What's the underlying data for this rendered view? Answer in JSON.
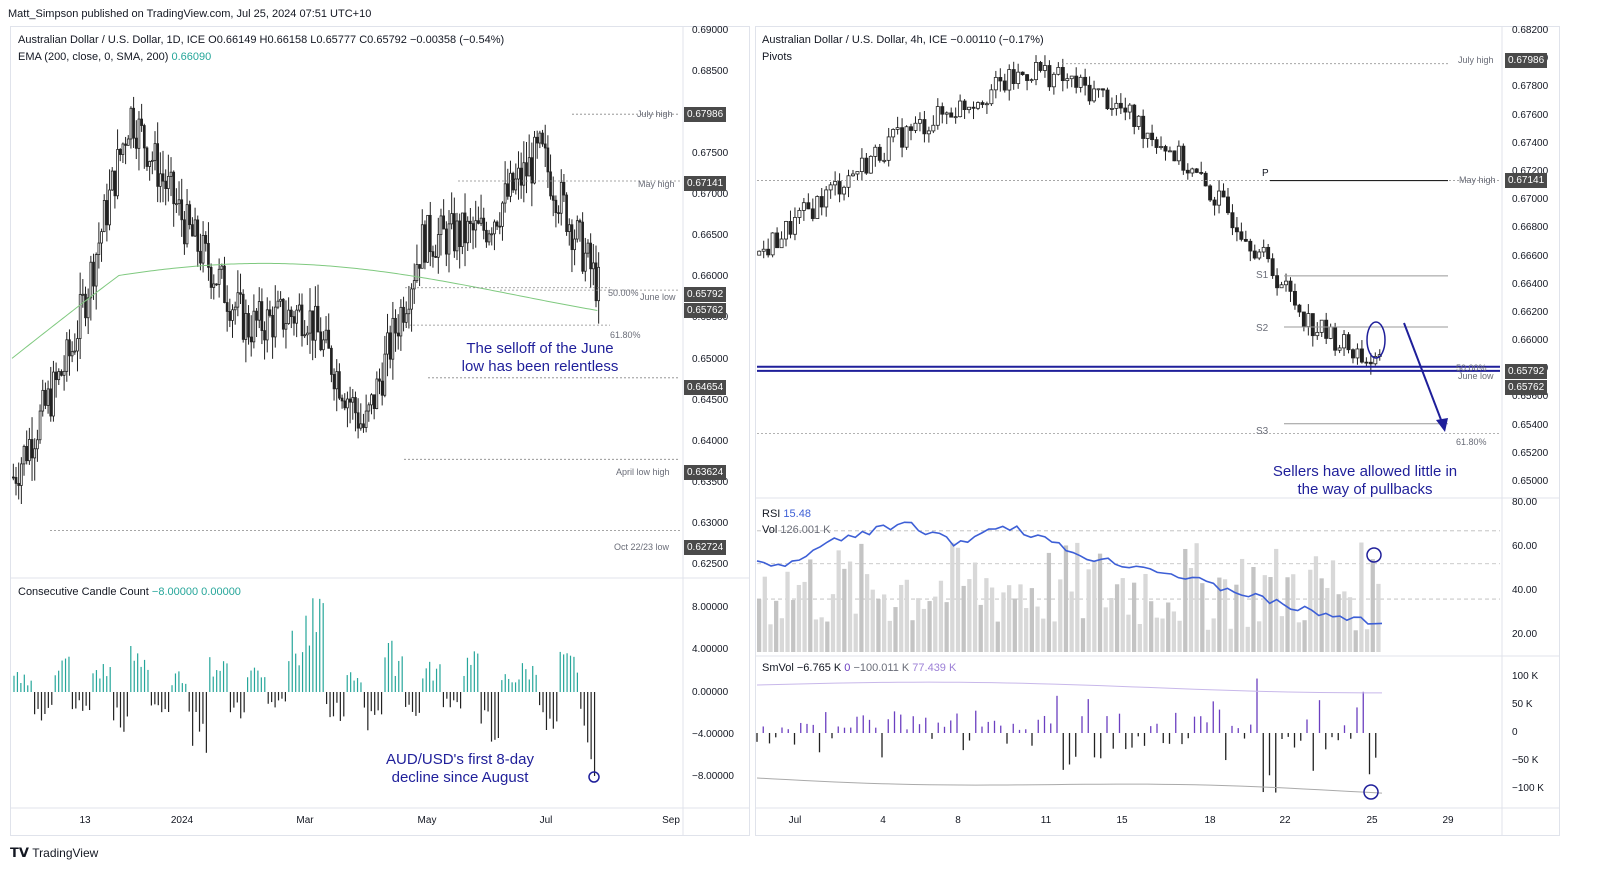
{
  "publisher": "Matt_Simpson published on TradingView.com, Jul 25, 2024 07:51 UTC+10",
  "footer_brand": "TradingView",
  "left": {
    "title": "Australian Dollar / U.S. Dollar, 1D, ICE",
    "ohlc": "O0.66149  H0.66158  L0.65777  C0.65792  −0.00358 (−0.54%)",
    "ema_label": "EMA (200, close, 0, SMA, 200)",
    "ema_value": "0.66090",
    "indicator_title": "Consecutive Candle Count",
    "indicator_values": "−8.00000  0.00000",
    "annotation_main": [
      "The selloff of the June",
      "low has been relentless"
    ],
    "annotation_ind": [
      "AUD/USD's first 8-day",
      "decline since August"
    ],
    "level_labels": {
      "july_high": "July high",
      "may_high": "May high",
      "fib50": "50.00%",
      "june_low": "June low",
      "fib618": "61.80%",
      "april_low_high": "April low high",
      "oct_low": "Oct 22/23 low"
    },
    "tags": [
      "0.67986",
      "0.67141",
      "0.65792",
      "0.65762",
      "0.64654",
      "0.63624",
      "0.62724"
    ],
    "price_ticks": [
      "0.69000",
      "0.68500",
      "0.67500",
      "0.67000",
      "0.66500",
      "0.66000",
      "0.65500",
      "0.65000",
      "0.64500",
      "0.64000",
      "0.63500",
      "0.63000",
      "0.62500"
    ],
    "ind_ticks": [
      "8.00000",
      "4.00000",
      "0.00000",
      "−4.00000",
      "−8.00000"
    ],
    "time_ticks": [
      "13",
      "2024",
      "Mar",
      "May",
      "Jul",
      "Sep"
    ]
  },
  "right": {
    "title": "Australian Dollar / U.S. Dollar, 4h, ICE",
    "change": "−0.00110 (−0.17%)",
    "pivots_label": "Pivots",
    "annotation_main": [
      "Sellers have allowed little in",
      "the way of pullbacks"
    ],
    "level_labels": {
      "july_high": "July high",
      "may_high": "May high",
      "p": "P",
      "s1": "S1",
      "s2": "S2",
      "s3": "S3",
      "fib50": "50.00%",
      "june_low": "June low",
      "fib618": "61.80%"
    },
    "tags": [
      "0.67986",
      "0.67141",
      "0.65792",
      "0.65762"
    ],
    "price_ticks": [
      "0.68200",
      "0.68000",
      "0.67800",
      "0.67600",
      "0.67400",
      "0.67200",
      "0.67000",
      "0.66800",
      "0.66600",
      "0.66400",
      "0.66200",
      "0.66000",
      "0.65800",
      "0.65600",
      "0.65400",
      "0.65200",
      "0.65000"
    ],
    "rsi_label": "RSI",
    "rsi_value": "15.48",
    "vol_label": "Vol",
    "vol_value": "126.001 K",
    "rsi_ticks": [
      "80.00",
      "60.00",
      "40.00",
      "20.00"
    ],
    "smvol_label": "SmVol",
    "smvol_values": [
      "−6.765 K",
      "0",
      "−100.011 K",
      "77.439 K"
    ],
    "smvol_ticks": [
      "100 K",
      "50 K",
      "0",
      "−50 K",
      "−100 K"
    ],
    "time_ticks": [
      "Jul",
      "4",
      "8",
      "11",
      "15",
      "18",
      "22",
      "25",
      "29"
    ]
  },
  "colors": {
    "annotation": "#1f1f9a",
    "ema": "#7fc97f",
    "up_bar": "#26a69a",
    "rsi": "#3d5fd6",
    "smvol_pos": "#6b3fc0",
    "tag_bg": "#4a4a4a"
  },
  "chart_data": [
    {
      "type": "candlestick",
      "title": "Australian Dollar / U.S. Dollar, 1D, ICE",
      "ylim": [
        0.6225,
        0.6905
      ],
      "x_range": [
        "2023-10",
        "2024-09"
      ],
      "key_points": [
        {
          "x": "2023-10",
          "close": 0.634
        },
        {
          "x": "2023-11",
          "close": 0.65
        },
        {
          "x": "2023-12",
          "close": 0.68
        },
        {
          "x": "2024-01",
          "close": 0.665
        },
        {
          "x": "2024-02",
          "close": 0.653
        },
        {
          "x": "2024-03",
          "close": 0.655
        },
        {
          "x": "2024-04",
          "close": 0.64
        },
        {
          "x": "2024-05",
          "close": 0.664
        },
        {
          "x": "2024-06",
          "close": 0.665
        },
        {
          "x": "2024-07",
          "close": 0.675
        },
        {
          "x": "2024-07-24",
          "close": 0.65792
        }
      ]
    },
    {
      "type": "bar",
      "title": "Consecutive Candle Count",
      "ylim": [
        -10,
        10
      ],
      "values": [
        2,
        -3,
        4,
        -2,
        3,
        -4,
        5,
        -2,
        2,
        -6,
        4,
        -3,
        3,
        -2,
        6,
        9,
        -3,
        2,
        -4,
        5,
        -3,
        3,
        -2,
        4,
        -5,
        2,
        3,
        -4,
        4,
        -8
      ]
    },
    {
      "type": "candlestick",
      "title": "Australian Dollar / U.S. Dollar, 4h, ICE",
      "ylim": [
        0.649,
        0.6823
      ],
      "x_range": [
        "Jul",
        "29"
      ],
      "key_points": [
        {
          "x": "Jul 1",
          "close": 0.666
        },
        {
          "x": "Jul 4",
          "close": 0.6705
        },
        {
          "x": "Jul 8",
          "close": 0.6745
        },
        {
          "x": "Jul 11",
          "close": 0.677
        },
        {
          "x": "Jul 12",
          "close": 0.6795
        },
        {
          "x": "Jul 15",
          "close": 0.6775
        },
        {
          "x": "Jul 18",
          "close": 0.6735
        },
        {
          "x": "Jul 22",
          "close": 0.668
        },
        {
          "x": "Jul 24",
          "close": 0.661
        },
        {
          "x": "Jul 25",
          "close": 0.65792
        }
      ]
    },
    {
      "type": "line",
      "title": "RSI",
      "ylim": [
        0,
        85
      ],
      "values": [
        50,
        48,
        52,
        60,
        64,
        68,
        70,
        72,
        68,
        62,
        64,
        72,
        70,
        66,
        60,
        55,
        52,
        50,
        48,
        45,
        42,
        38,
        35,
        32,
        28,
        25,
        22,
        20,
        18,
        15.48
      ]
    },
    {
      "type": "bar",
      "title": "SmVol",
      "ylim": [
        -120000,
        120000
      ],
      "values": [
        -20000,
        30000,
        -40000,
        20000,
        -35000,
        50000,
        -30000,
        25000,
        -45000,
        40000,
        -20000,
        60000,
        -70000,
        100000,
        -40000,
        30000,
        -50000,
        35000,
        -60000,
        25000,
        -110000,
        30000,
        -80000,
        20000,
        -100011
      ]
    }
  ]
}
